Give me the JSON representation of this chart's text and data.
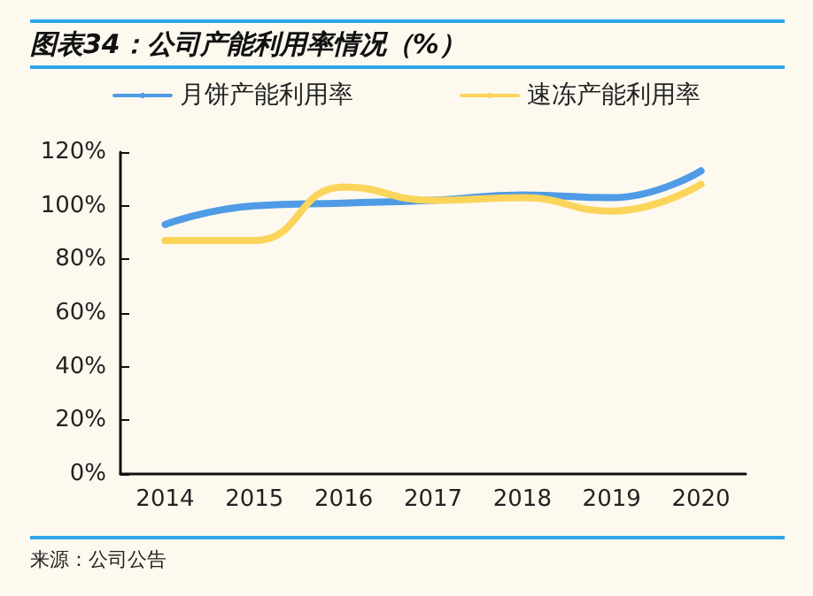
{
  "chart_data": {
    "type": "line",
    "title": "图表34：公司产能利用率情况（%）",
    "annotations": [
      "来源：公司公告"
    ],
    "categories": [
      "2014",
      "2015",
      "2016",
      "2017",
      "2018",
      "2019",
      "2020"
    ],
    "series": [
      {
        "name": "月饼产能利用率",
        "color": "#4f9be6",
        "values": [
          93,
          100,
          101,
          102,
          104,
          103,
          113
        ]
      },
      {
        "name": "速冻产能利用率",
        "color": "#fbd45a",
        "values": [
          87,
          87,
          107,
          102,
          103,
          98,
          108
        ]
      }
    ],
    "ylim": [
      0,
      120
    ],
    "yticks": [
      {
        "value": 0,
        "label": "0%"
      },
      {
        "value": 20,
        "label": "20%"
      },
      {
        "value": 40,
        "label": "40%"
      },
      {
        "value": 60,
        "label": "60%"
      },
      {
        "value": 80,
        "label": "80%"
      },
      {
        "value": 100,
        "label": "100%"
      },
      {
        "value": 120,
        "label": "120%"
      }
    ],
    "grid": false,
    "legend": "top",
    "marker": "none",
    "line_style": "solid"
  }
}
